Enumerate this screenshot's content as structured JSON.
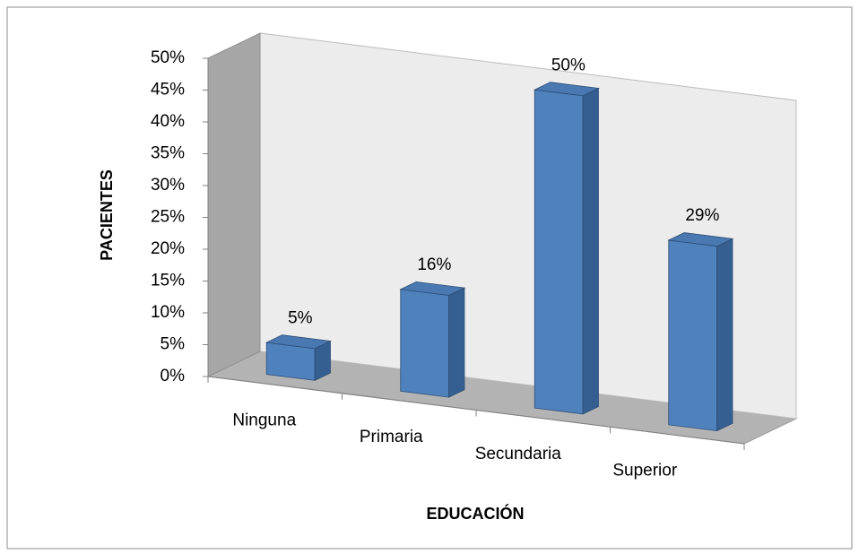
{
  "chart_data": {
    "type": "bar3d",
    "categories": [
      "Ninguna",
      "Primaria",
      "Secundaria",
      "Superior"
    ],
    "values": [
      5,
      16,
      50,
      29
    ],
    "value_labels": [
      "5%",
      "16%",
      "50%",
      "29%"
    ],
    "color": "#4f81bd",
    "xlabel": "EDUCACIÓN",
    "ylabel": "PACIENTES",
    "ylim": [
      0,
      50
    ],
    "yticks": [
      {
        "value": 0,
        "label": "0%"
      },
      {
        "value": 5,
        "label": "5%"
      },
      {
        "value": 10,
        "label": "10%"
      },
      {
        "value": 15,
        "label": "15%"
      },
      {
        "value": 20,
        "label": "20%"
      },
      {
        "value": 25,
        "label": "25%"
      },
      {
        "value": 30,
        "label": "30%"
      },
      {
        "value": 35,
        "label": "35%"
      },
      {
        "value": 40,
        "label": "40%"
      },
      {
        "value": 45,
        "label": "45%"
      },
      {
        "value": 50,
        "label": "50%"
      }
    ],
    "grid": false
  }
}
